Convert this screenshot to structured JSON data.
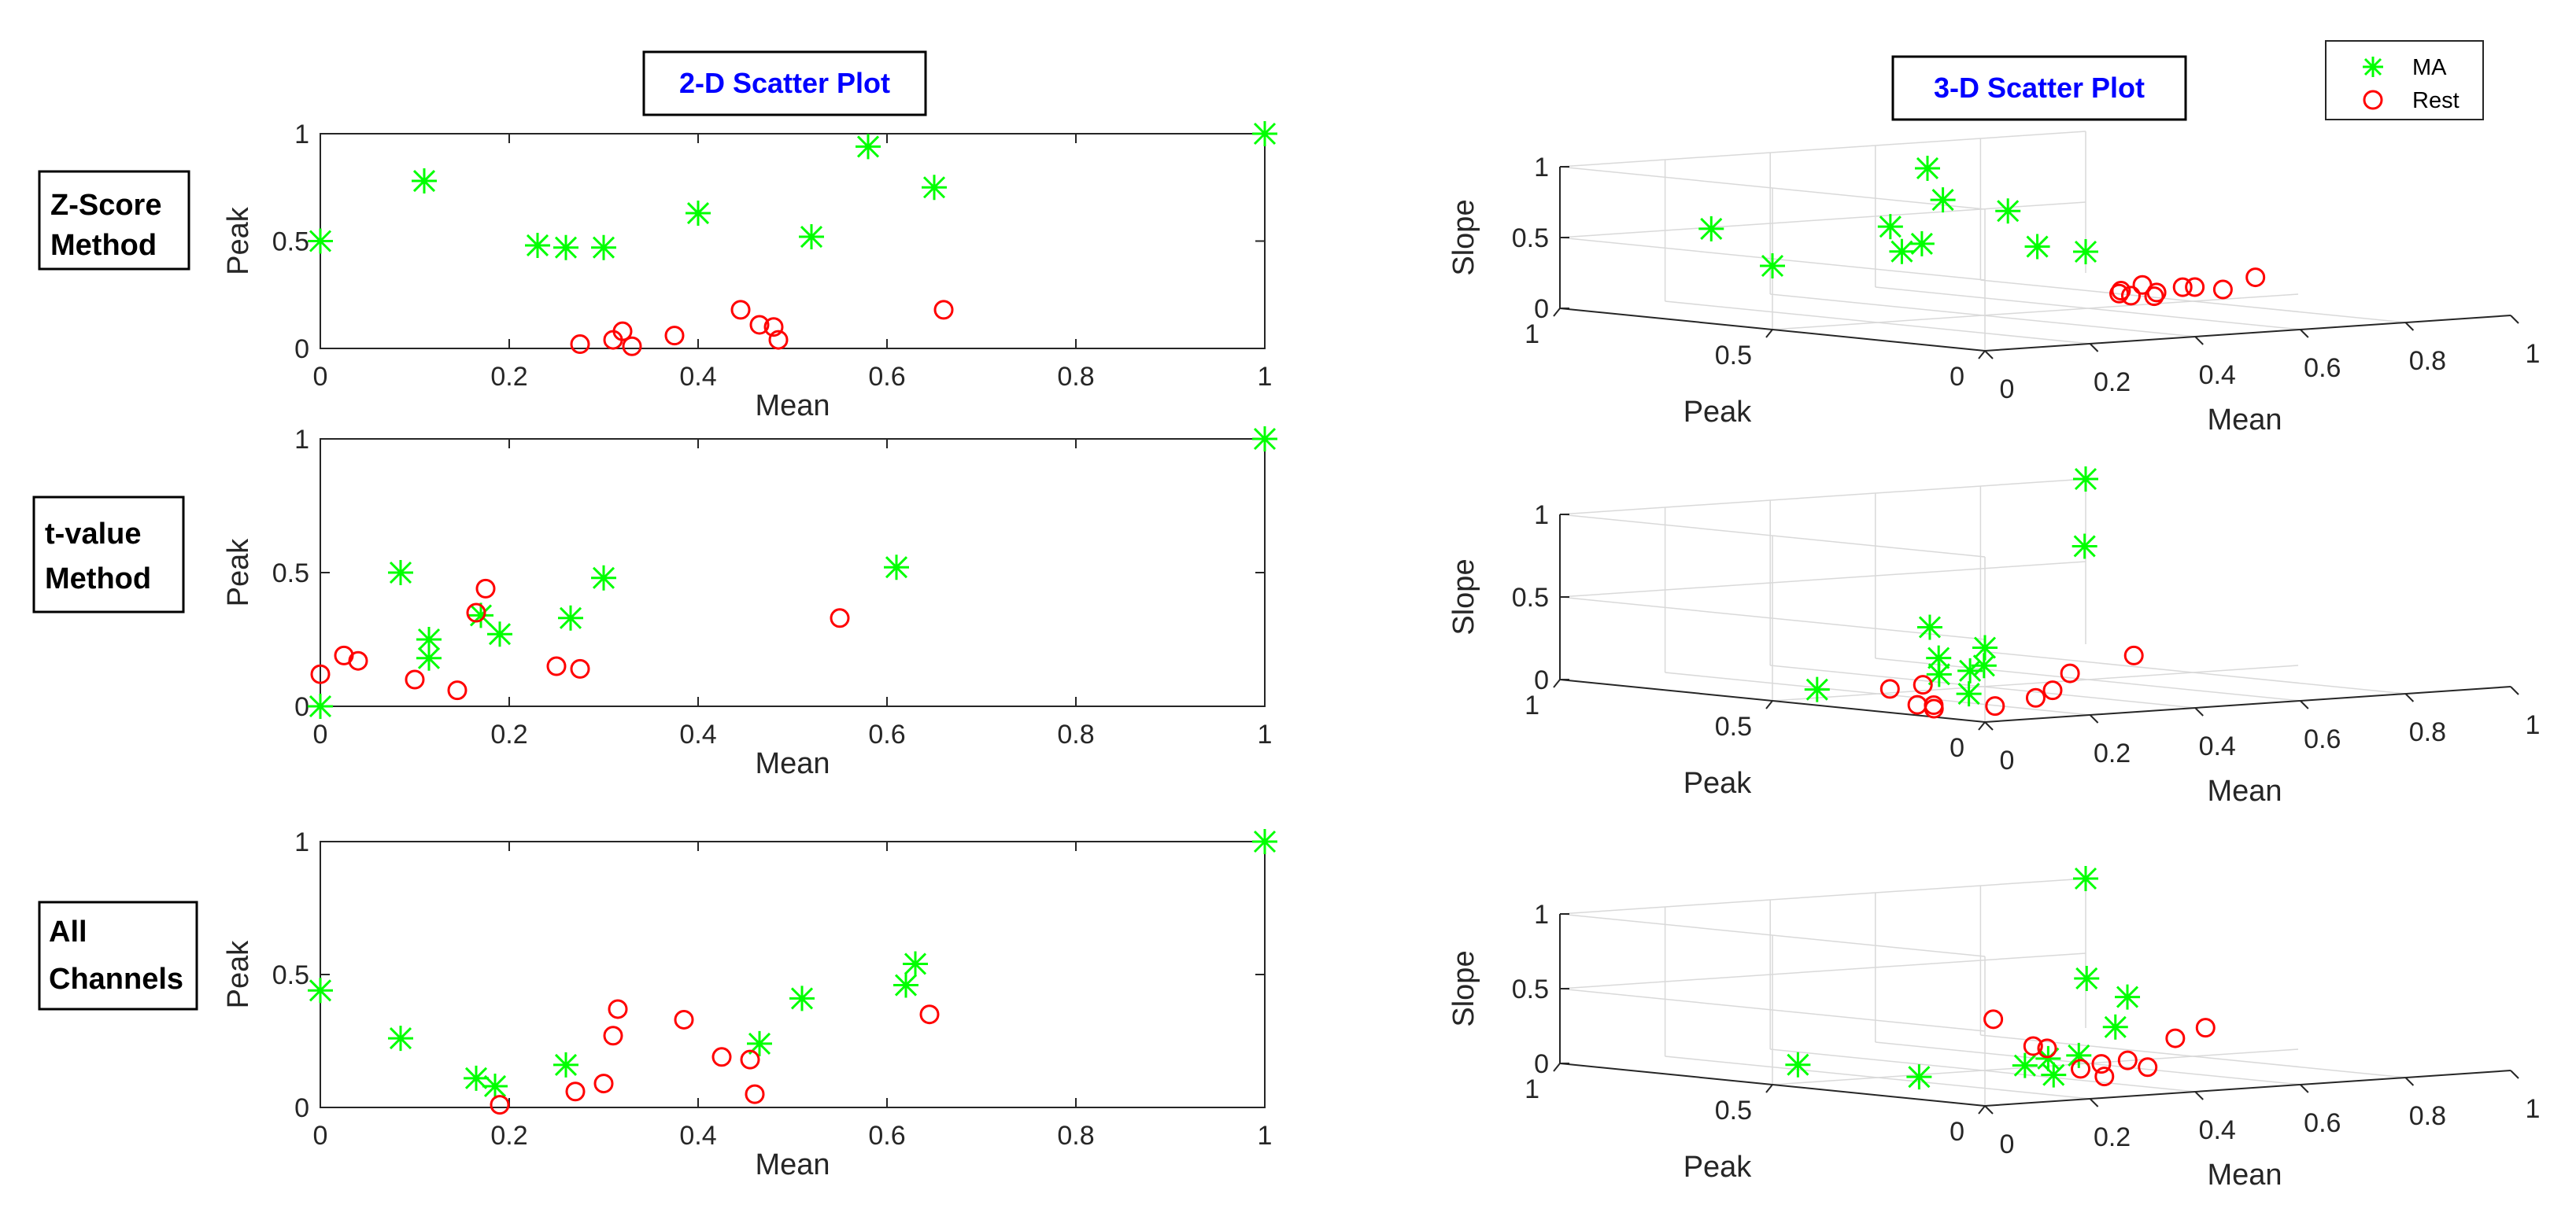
{
  "titles": {
    "left": "2-D Scatter Plot",
    "right": "3-D Scatter Plot"
  },
  "legend": {
    "items": [
      {
        "label": "MA",
        "marker": "star",
        "color": "#00ff00"
      },
      {
        "label": "Rest",
        "marker": "circle",
        "color": "#ff0000"
      }
    ]
  },
  "row_labels": [
    [
      "Z-Score",
      "Method"
    ],
    [
      "t-value",
      "Method"
    ],
    [
      "All",
      "Channels"
    ]
  ],
  "colors": {
    "ma": "#00ff00",
    "rest": "#ff0000",
    "title": "#0000ff",
    "axis": "#262626",
    "grid": "#d9d9d9"
  },
  "chart_data": [
    {
      "type": "scatter",
      "name": "2D Z-Score Method",
      "xlabel": "Mean",
      "ylabel": "Peak",
      "xlim": [
        0,
        1
      ],
      "ylim": [
        0,
        1
      ],
      "xticks": [
        "0",
        "0.2",
        "0.4",
        "0.6",
        "0.8",
        "1"
      ],
      "yticks": [
        "0",
        "0.5",
        "1"
      ],
      "series": [
        {
          "name": "MA",
          "points": [
            [
              0,
              0.5
            ],
            [
              0.11,
              0.78
            ],
            [
              0.23,
              0.48
            ],
            [
              0.26,
              0.47
            ],
            [
              0.3,
              0.47
            ],
            [
              0.4,
              0.63
            ],
            [
              0.52,
              0.52
            ],
            [
              0.58,
              0.94
            ],
            [
              0.65,
              0.75
            ],
            [
              1,
              1
            ]
          ]
        },
        {
          "name": "Rest",
          "points": [
            [
              0.275,
              0.02
            ],
            [
              0.31,
              0.04
            ],
            [
              0.32,
              0.08
            ],
            [
              0.33,
              0.01
            ],
            [
              0.375,
              0.06
            ],
            [
              0.445,
              0.18
            ],
            [
              0.465,
              0.11
            ],
            [
              0.48,
              0.1
            ],
            [
              0.485,
              0.04
            ],
            [
              0.66,
              0.18
            ]
          ]
        }
      ]
    },
    {
      "type": "scatter",
      "name": "2D t-value Method",
      "xlabel": "Mean",
      "ylabel": "Peak",
      "xlim": [
        0,
        1
      ],
      "ylim": [
        0,
        1
      ],
      "xticks": [
        "0",
        "0.2",
        "0.4",
        "0.6",
        "0.8",
        "1"
      ],
      "yticks": [
        "0",
        "0.5",
        "1"
      ],
      "series": [
        {
          "name": "MA",
          "points": [
            [
              0,
              0
            ],
            [
              0.085,
              0.5
            ],
            [
              0.115,
              0.18
            ],
            [
              0.115,
              0.25
            ],
            [
              0.17,
              0.34
            ],
            [
              0.19,
              0.27
            ],
            [
              0.265,
              0.33
            ],
            [
              0.3,
              0.48
            ],
            [
              0.61,
              0.52
            ],
            [
              1,
              1
            ]
          ]
        },
        {
          "name": "Rest",
          "points": [
            [
              0,
              0.12
            ],
            [
              0.025,
              0.19
            ],
            [
              0.04,
              0.17
            ],
            [
              0.1,
              0.1
            ],
            [
              0.145,
              0.06
            ],
            [
              0.165,
              0.35
            ],
            [
              0.175,
              0.44
            ],
            [
              0.25,
              0.15
            ],
            [
              0.275,
              0.14
            ],
            [
              0.55,
              0.33
            ]
          ]
        }
      ]
    },
    {
      "type": "scatter",
      "name": "2D All Channels",
      "xlabel": "Mean",
      "ylabel": "Peak",
      "xlim": [
        0,
        1
      ],
      "ylim": [
        0,
        1
      ],
      "xticks": [
        "0",
        "0.2",
        "0.4",
        "0.6",
        "0.8",
        "1"
      ],
      "yticks": [
        "0",
        "0.5",
        "1"
      ],
      "series": [
        {
          "name": "MA",
          "points": [
            [
              0,
              0.44
            ],
            [
              0.085,
              0.26
            ],
            [
              0.165,
              0.11
            ],
            [
              0.185,
              0.08
            ],
            [
              0.26,
              0.16
            ],
            [
              0.465,
              0.24
            ],
            [
              0.51,
              0.41
            ],
            [
              0.62,
              0.46
            ],
            [
              0.63,
              0.54
            ],
            [
              1,
              1
            ]
          ]
        },
        {
          "name": "Rest",
          "points": [
            [
              0.19,
              0.01
            ],
            [
              0.27,
              0.06
            ],
            [
              0.3,
              0.09
            ],
            [
              0.31,
              0.27
            ],
            [
              0.315,
              0.37
            ],
            [
              0.385,
              0.33
            ],
            [
              0.425,
              0.19
            ],
            [
              0.455,
              0.18
            ],
            [
              0.46,
              0.05
            ],
            [
              0.645,
              0.35
            ]
          ]
        }
      ]
    },
    {
      "type": "scatter",
      "name": "3D Z-Score Method",
      "xlabel": "Mean",
      "ylabel": "Peak",
      "zlabel": "Slope",
      "xlim": [
        0,
        1
      ],
      "ylim": [
        0,
        1
      ],
      "zlim": [
        0,
        1
      ],
      "xticks": [
        "0",
        "0.2",
        "0.4",
        "0.6",
        "0.8",
        "1"
      ],
      "yticks": [
        "0",
        "0.5",
        "1"
      ],
      "zticks": [
        "0",
        "0.5",
        "1"
      ],
      "series": [
        {
          "name": "MA",
          "points": [
            [
              0,
              0.5,
              0.45
            ],
            [
              0.11,
              0.78,
              0.6
            ],
            [
              0.23,
              0.48,
              0.5
            ],
            [
              0.26,
              0.47,
              0.55
            ],
            [
              0.3,
              0.47,
              0.85
            ],
            [
              0.4,
              0.63,
              1.0
            ],
            [
              0.52,
              0.52,
              0.45
            ],
            [
              0.58,
              0.94,
              0.45
            ],
            [
              0.65,
              0.75,
              0.6
            ],
            [
              1,
              1,
              0.15
            ]
          ]
        },
        {
          "name": "Rest",
          "points": [
            [
              0.275,
              0.02,
              0.35
            ],
            [
              0.31,
              0.04,
              0.3
            ],
            [
              0.32,
              0.08,
              0.3
            ],
            [
              0.33,
              0.01,
              0.3
            ],
            [
              0.375,
              0.06,
              0.3
            ],
            [
              0.445,
              0.18,
              0.3
            ],
            [
              0.465,
              0.11,
              0.3
            ],
            [
              0.48,
              0.1,
              0.3
            ],
            [
              0.485,
              0.04,
              0.3
            ],
            [
              0.66,
              0.18,
              0.3
            ]
          ]
        }
      ]
    },
    {
      "type": "scatter",
      "name": "3D t-value Method",
      "xlabel": "Mean",
      "ylabel": "Peak",
      "zlabel": "Slope",
      "xlim": [
        0,
        1
      ],
      "ylim": [
        0,
        1
      ],
      "zlim": [
        0,
        1
      ],
      "xticks": [
        "0",
        "0.2",
        "0.4",
        "0.6",
        "0.8",
        "1"
      ],
      "yticks": [
        "0",
        "0.5",
        "1"
      ],
      "zticks": [
        "0",
        "0.5",
        "1"
      ],
      "series": [
        {
          "name": "MA",
          "points": [
            [
              0,
              0,
              0.45
            ],
            [
              0.085,
              0.5,
              0.05
            ],
            [
              0.115,
              0.18,
              0.1
            ],
            [
              0.115,
              0.25,
              0.2
            ],
            [
              0.17,
              0.34,
              0.45
            ],
            [
              0.19,
              0.27,
              0.2
            ],
            [
              0.265,
              0.33,
              0.2
            ],
            [
              0.3,
              0.48,
              0.2
            ],
            [
              0.61,
              0.52,
              0.8
            ],
            [
              1,
              1,
              1.0
            ]
          ]
        },
        {
          "name": "Rest",
          "points": [
            [
              0,
              0.12,
              0.05
            ],
            [
              0.025,
              0.19,
              0.05
            ],
            [
              0.04,
              0.17,
              0.05
            ],
            [
              0.1,
              0.1,
              0.05
            ],
            [
              0.145,
              0.06,
              0.1
            ],
            [
              0.165,
              0.35,
              0.1
            ],
            [
              0.175,
              0.44,
              0.05
            ],
            [
              0.25,
              0.15,
              0.1
            ],
            [
              0.275,
              0.14,
              0.2
            ],
            [
              0.55,
              0.33,
              0.2
            ]
          ]
        }
      ]
    },
    {
      "type": "scatter",
      "name": "3D All Channels",
      "xlabel": "Mean",
      "ylabel": "Peak",
      "zlabel": "Slope",
      "xlim": [
        0,
        1
      ],
      "ylim": [
        0,
        1
      ],
      "zlim": [
        0,
        1
      ],
      "xticks": [
        "0",
        "0.2",
        "0.4",
        "0.6",
        "0.8",
        "1"
      ],
      "yticks": [
        "0",
        "0.5",
        "1"
      ],
      "zticks": [
        "0",
        "0.5",
        "1"
      ],
      "series": [
        {
          "name": "MA",
          "points": [
            [
              0,
              0.44,
              0.15
            ],
            [
              0.085,
              0.26,
              0.1
            ],
            [
              0.165,
              0.11,
              0.2
            ],
            [
              0.185,
              0.08,
              0.25
            ],
            [
              0.26,
              0.16,
              0.1
            ],
            [
              0.465,
              0.24,
              0.55
            ],
            [
              0.51,
              0.41,
              0.1
            ],
            [
              0.62,
              0.46,
              0.25
            ],
            [
              0.63,
              0.54,
              0.55
            ],
            [
              1,
              1,
              1.0
            ]
          ]
        },
        {
          "name": "Rest",
          "points": [
            [
              0.19,
              0.01,
              0.2
            ],
            [
              0.27,
              0.06,
              0.2
            ],
            [
              0.3,
              0.09,
              0.1
            ],
            [
              0.31,
              0.27,
              0.25
            ],
            [
              0.315,
              0.37,
              0.4
            ],
            [
              0.385,
              0.33,
              0.2
            ],
            [
              0.425,
              0.19,
              0.15
            ],
            [
              0.455,
              0.18,
              0.1
            ],
            [
              0.46,
              0.05,
              0.4
            ],
            [
              0.645,
              0.35,
              0.2
            ]
          ]
        }
      ]
    }
  ]
}
